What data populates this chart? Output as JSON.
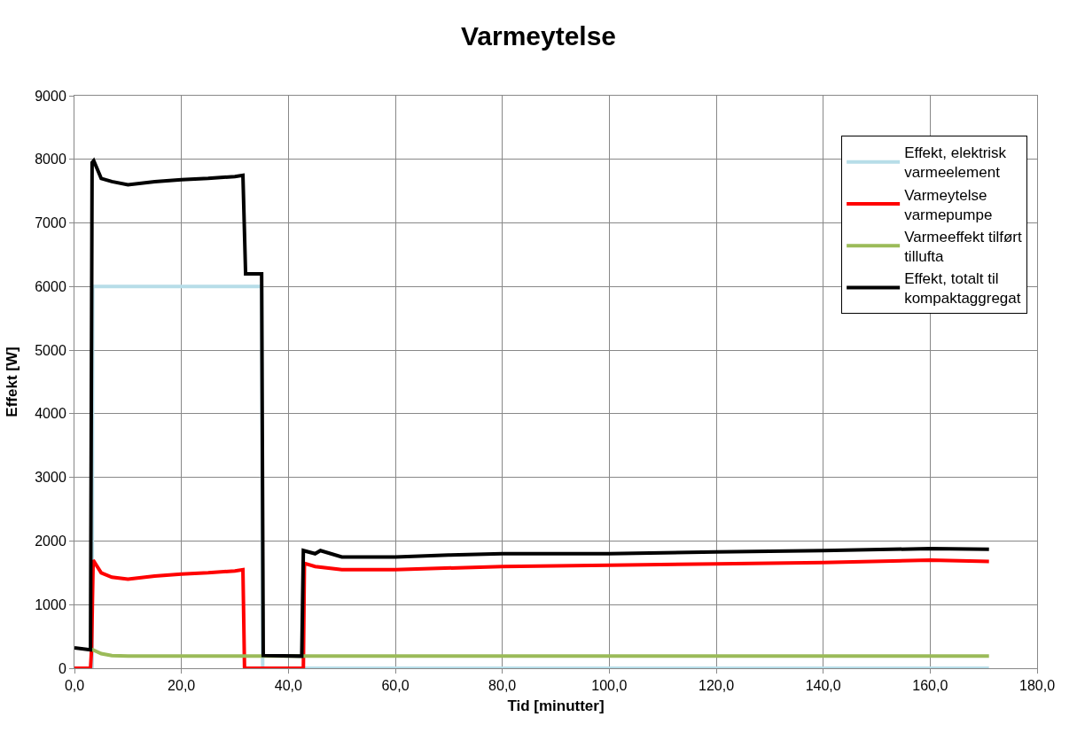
{
  "chart_data": {
    "type": "line",
    "title": "Varmeytelse",
    "xlabel": "Tid [minutter]",
    "ylabel": "Effekt [W]",
    "xlim": [
      0,
      180
    ],
    "xticks": [
      {
        "value": 0,
        "label": "0,0"
      },
      {
        "value": 20,
        "label": "20,0"
      },
      {
        "value": 40,
        "label": "40,0"
      },
      {
        "value": 60,
        "label": "60,0"
      },
      {
        "value": 80,
        "label": "80,0"
      },
      {
        "value": 100,
        "label": "100,0"
      },
      {
        "value": 120,
        "label": "120,0"
      },
      {
        "value": 140,
        "label": "140,0"
      },
      {
        "value": 160,
        "label": "160,0"
      },
      {
        "value": 180,
        "label": "180,0"
      }
    ],
    "ylim": [
      0,
      9000
    ],
    "yticks": [
      0,
      1000,
      2000,
      3000,
      4000,
      5000,
      6000,
      7000,
      8000,
      9000
    ],
    "grid": true,
    "legend": "top right",
    "marker": "none",
    "line_style": "solid",
    "series": [
      {
        "name": "Effekt, elektrisk varmeelement",
        "color": "#b7dde8",
        "x": [
          3.3,
          3.4,
          35,
          35.2,
          171
        ],
        "values": [
          0,
          6000,
          6000,
          0,
          0
        ]
      },
      {
        "name": "Varmeytelse varmepumpe",
        "color": "#ff0000",
        "x": [
          0,
          3,
          3.2,
          3.5,
          5,
          7,
          10,
          15,
          20,
          25,
          30,
          31.5,
          31.8,
          42.8,
          43,
          45,
          50,
          60,
          80,
          100,
          120,
          140,
          160,
          171
        ],
        "values": [
          0,
          0,
          300,
          1700,
          1500,
          1430,
          1400,
          1450,
          1480,
          1500,
          1530,
          1550,
          0,
          0,
          1650,
          1600,
          1550,
          1550,
          1600,
          1620,
          1640,
          1660,
          1700,
          1680
        ]
      },
      {
        "name": "Varmeeffekt tilført tillufta",
        "color": "#9bbb59",
        "x": [
          3.2,
          5,
          7,
          10,
          20,
          40,
          60,
          100,
          140,
          171
        ],
        "values": [
          300,
          230,
          200,
          190,
          190,
          190,
          190,
          190,
          190,
          190
        ]
      },
      {
        "name": "Effekt, totalt til kompaktaggregat",
        "color": "#000000",
        "x": [
          0,
          3,
          3.3,
          3.6,
          5,
          7,
          10,
          15,
          20,
          25,
          30,
          31.5,
          32,
          35,
          35.3,
          42.5,
          42.8,
          45,
          46,
          50,
          60,
          70,
          80,
          100,
          120,
          140,
          160,
          171
        ],
        "values": [
          320,
          290,
          7950,
          7980,
          7700,
          7650,
          7600,
          7650,
          7680,
          7700,
          7730,
          7750,
          6200,
          6200,
          200,
          190,
          1850,
          1800,
          1850,
          1750,
          1750,
          1780,
          1800,
          1800,
          1830,
          1850,
          1880,
          1870
        ]
      }
    ]
  }
}
